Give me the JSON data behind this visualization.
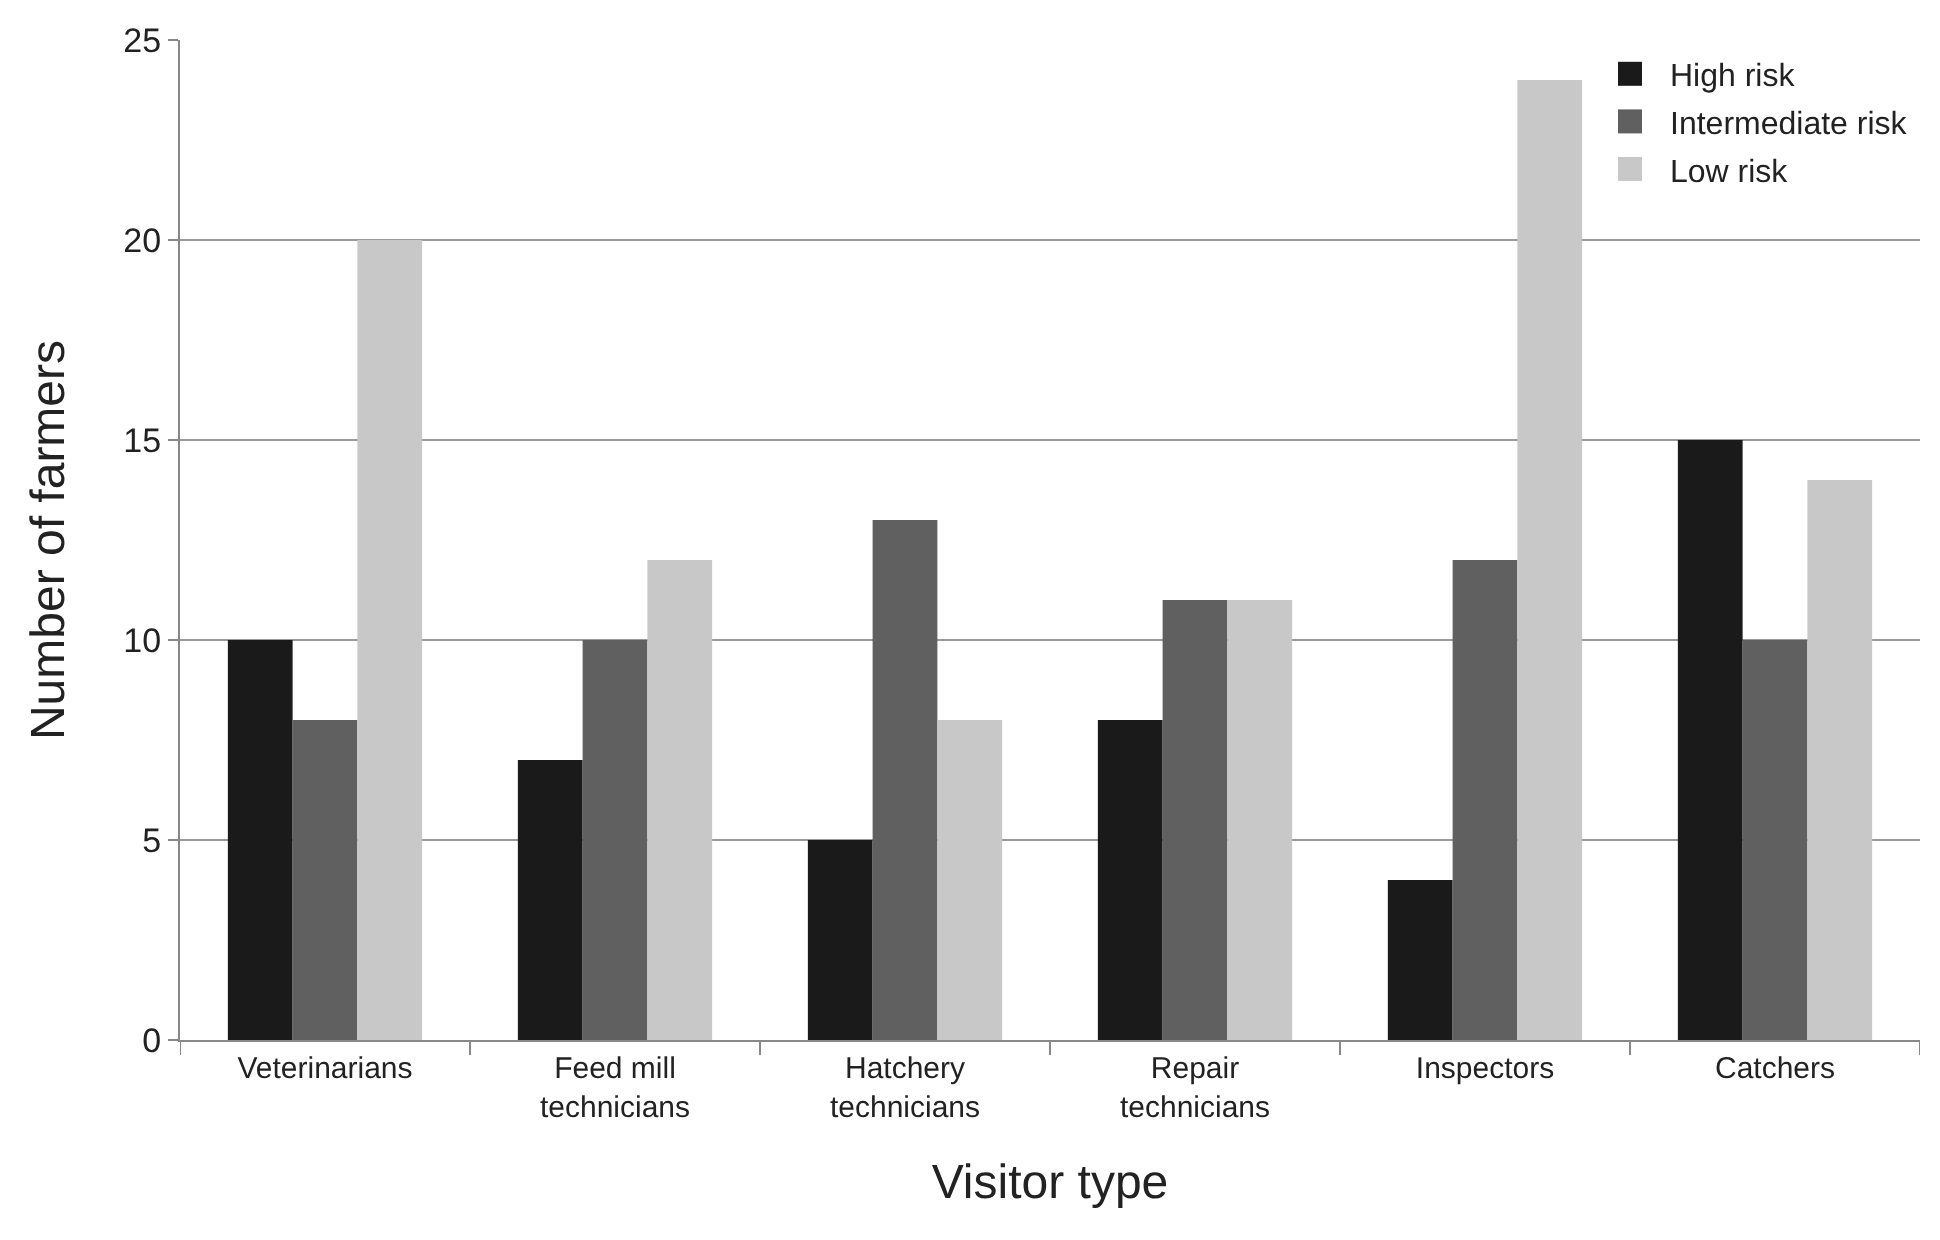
{
  "chart_data": {
    "type": "bar",
    "xlabel": "Visitor type",
    "ylabel": "Number of farmers",
    "categories": [
      "Veterinarians",
      "Feed mill technicians",
      "Hatchery technicians",
      "Repair technicians",
      "Inspectors",
      "Catchers"
    ],
    "series": [
      {
        "name": "High risk",
        "color": "#1a1a1a",
        "values": [
          10,
          7,
          5,
          8,
          4,
          15
        ]
      },
      {
        "name": "Intermediate risk",
        "color": "#606060",
        "values": [
          8,
          10,
          13,
          11,
          12,
          10
        ]
      },
      {
        "name": "Low risk",
        "color": "#c8c8c8",
        "values": [
          20,
          12,
          8,
          11,
          24,
          14
        ]
      }
    ],
    "ylim": [
      0,
      25
    ],
    "yticks": [
      0,
      5,
      10,
      15,
      20,
      25
    ],
    "grid": "y",
    "legend": "top right"
  }
}
